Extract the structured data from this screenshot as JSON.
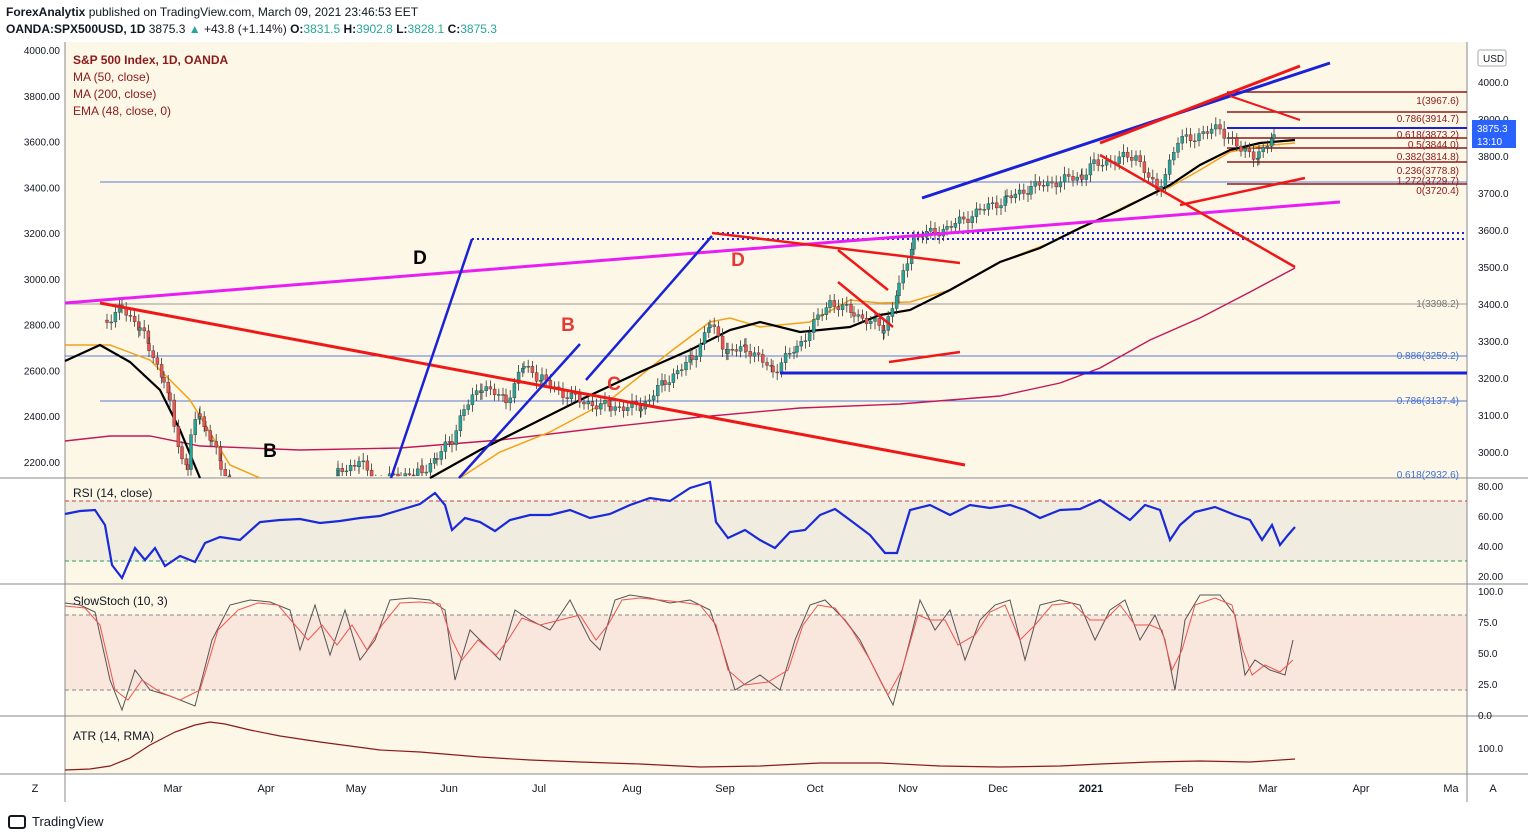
{
  "header": {
    "publisher": "ForexAnalytix",
    "published_text": "published on TradingView.com, March 09, 2021 23:46:53 EET",
    "symbol": "OANDA:SPX500USD, 1D",
    "last": "3875.3",
    "change": "+43.8 (+1.14%)",
    "o_label": "O:",
    "o": "3831.5",
    "h_label": "H:",
    "h": "3902.8",
    "l_label": "L:",
    "l": "3828.1",
    "c_label": "C:",
    "c": "3875.3"
  },
  "footer": {
    "brand": "TradingView",
    "left_corner": "Z",
    "right_corner": "A"
  },
  "colors": {
    "up": "#26a69a",
    "down": "#ef5350",
    "ma50": "#000000",
    "ma200": "#c2185b",
    "ema48": "#f2a21b",
    "magenta": "#e91ef2",
    "blue": "#1a22d8",
    "red": "#ef1818",
    "rsi": "#1a2ad8"
  },
  "chart_data": [
    {
      "type": "line",
      "title": "S&P 500 Index, 1D, OANDA",
      "currency": "USD",
      "indicators": [
        "MA (50, close)",
        "MA (200, close)",
        "EMA (48, close, 0)"
      ],
      "left_axis_ticks": [
        "4000.00",
        "3800.00",
        "3600.00",
        "3400.00",
        "3200.00",
        "3000.00",
        "2800.00",
        "2600.00",
        "2400.00",
        "2200.00"
      ],
      "right_axis_ticks": [
        "4000.0",
        "3900.0",
        "3800.0",
        "3700.0",
        "3600.0",
        "3500.0",
        "3400.0",
        "3300.0",
        "3200.0",
        "3100.0",
        "3000.0"
      ],
      "last_price_badge": "3875.3",
      "countdown": "13:10",
      "x_labels": [
        "Mar",
        "Apr",
        "May",
        "Jun",
        "Jul",
        "Aug",
        "Sep",
        "Oct",
        "Nov",
        "Dec",
        "2021",
        "Feb",
        "Mar",
        "Apr",
        "Ma"
      ],
      "wave_labels": [
        {
          "text": "D",
          "color": "black"
        },
        {
          "text": "B",
          "color": "black"
        },
        {
          "text": "B",
          "color": "red"
        },
        {
          "text": "C",
          "color": "red"
        },
        {
          "text": "D",
          "color": "red"
        }
      ],
      "fib_levels": [
        {
          "ratio": "1",
          "value": "3967.6"
        },
        {
          "ratio": "0.786",
          "value": "3914.7"
        },
        {
          "ratio": "0.618",
          "value": "3873.2"
        },
        {
          "ratio": "0.5",
          "value": "3844.0"
        },
        {
          "ratio": "0.382",
          "value": "3814.8"
        },
        {
          "ratio": "0.236",
          "value": "3778.8"
        },
        {
          "ratio": "1.272",
          "value": "3729.7"
        },
        {
          "ratio": "0",
          "value": "3720.4"
        },
        {
          "ratio": "1",
          "value": "3398.2"
        },
        {
          "ratio": "0.886",
          "value": "3259.2"
        },
        {
          "ratio": "0.786",
          "value": "3137.4"
        },
        {
          "ratio": "0.618",
          "value": "2932.6"
        }
      ],
      "price_path": [
        [
          "2020-02-14",
          2820
        ],
        [
          "2020-02-19",
          2870
        ],
        [
          "2020-02-25",
          2790
        ],
        [
          "2020-02-28",
          2700
        ],
        [
          "2020-03-04",
          2560
        ],
        [
          "2020-03-06",
          2450
        ],
        [
          "2020-03-10",
          2210
        ],
        [
          "2020-03-12",
          2180
        ],
        [
          "2020-03-13",
          2310
        ],
        [
          "2020-03-16",
          2420
        ],
        [
          "2020-03-18",
          2330
        ],
        [
          "2020-03-20",
          2290
        ],
        [
          "2020-03-23",
          2190
        ],
        [
          "2020-03-26",
          2110
        ],
        [
          "2020-04-01",
          2060
        ],
        [
          "2020-04-09",
          1990
        ],
        [
          "2020-04-17",
          2000
        ],
        [
          "2020-04-24",
          2020
        ],
        [
          "2020-05-01",
          2150
        ],
        [
          "2020-05-08",
          2200
        ],
        [
          "2020-05-14",
          2110
        ],
        [
          "2020-05-22",
          2140
        ],
        [
          "2020-05-29",
          2160
        ],
        [
          "2020-06-03",
          2220
        ],
        [
          "2020-06-08",
          2300
        ],
        [
          "2020-06-12",
          2430
        ],
        [
          "2020-06-18",
          2530
        ],
        [
          "2020-06-26",
          2470
        ],
        [
          "2020-07-02",
          2620
        ],
        [
          "2020-07-08",
          2560
        ],
        [
          "2020-07-15",
          2500
        ],
        [
          "2020-07-22",
          2460
        ],
        [
          "2020-07-31",
          2440
        ],
        [
          "2020-08-10",
          2440
        ],
        [
          "2020-08-18",
          2550
        ],
        [
          "2020-08-27",
          2650
        ],
        [
          "2020-09-02",
          2800
        ],
        [
          "2020-09-08",
          2680
        ],
        [
          "2020-09-14",
          2700
        ],
        [
          "2020-09-23",
          2600
        ],
        [
          "2020-10-01",
          2700
        ],
        [
          "2020-10-12",
          2900
        ],
        [
          "2020-10-20",
          2850
        ],
        [
          "2020-10-30",
          2780
        ],
        [
          "2020-11-04",
          2960
        ],
        [
          "2020-11-09",
          3180
        ],
        [
          "2020-11-20",
          3220
        ],
        [
          "2020-12-01",
          3300
        ],
        [
          "2020-12-10",
          3350
        ],
        [
          "2020-12-18",
          3400
        ],
        [
          "2021-01-04",
          3450
        ],
        [
          "2021-01-08",
          3500
        ],
        [
          "2021-01-15",
          3520
        ],
        [
          "2021-01-22",
          3540
        ],
        [
          "2021-01-29",
          3380
        ],
        [
          "2021-02-05",
          3600
        ],
        [
          "2021-02-12",
          3630
        ],
        [
          "2021-02-19",
          3660
        ],
        [
          "2021-02-26",
          3560
        ],
        [
          "2021-03-04",
          3540
        ],
        [
          "2021-03-09",
          3620
        ]
      ]
    },
    {
      "type": "line",
      "title": "RSI (14, close)",
      "y_ticks": [
        "80.00",
        "60.00",
        "40.00",
        "20.00"
      ]
    },
    {
      "type": "line",
      "title": "SlowStoch (10, 3)",
      "y_ticks": [
        "100.0",
        "75.0",
        "50.0",
        "25.0",
        "0.0"
      ]
    },
    {
      "type": "line",
      "title": "ATR (14, RMA)",
      "y_ticks": [
        "100.0"
      ]
    }
  ]
}
